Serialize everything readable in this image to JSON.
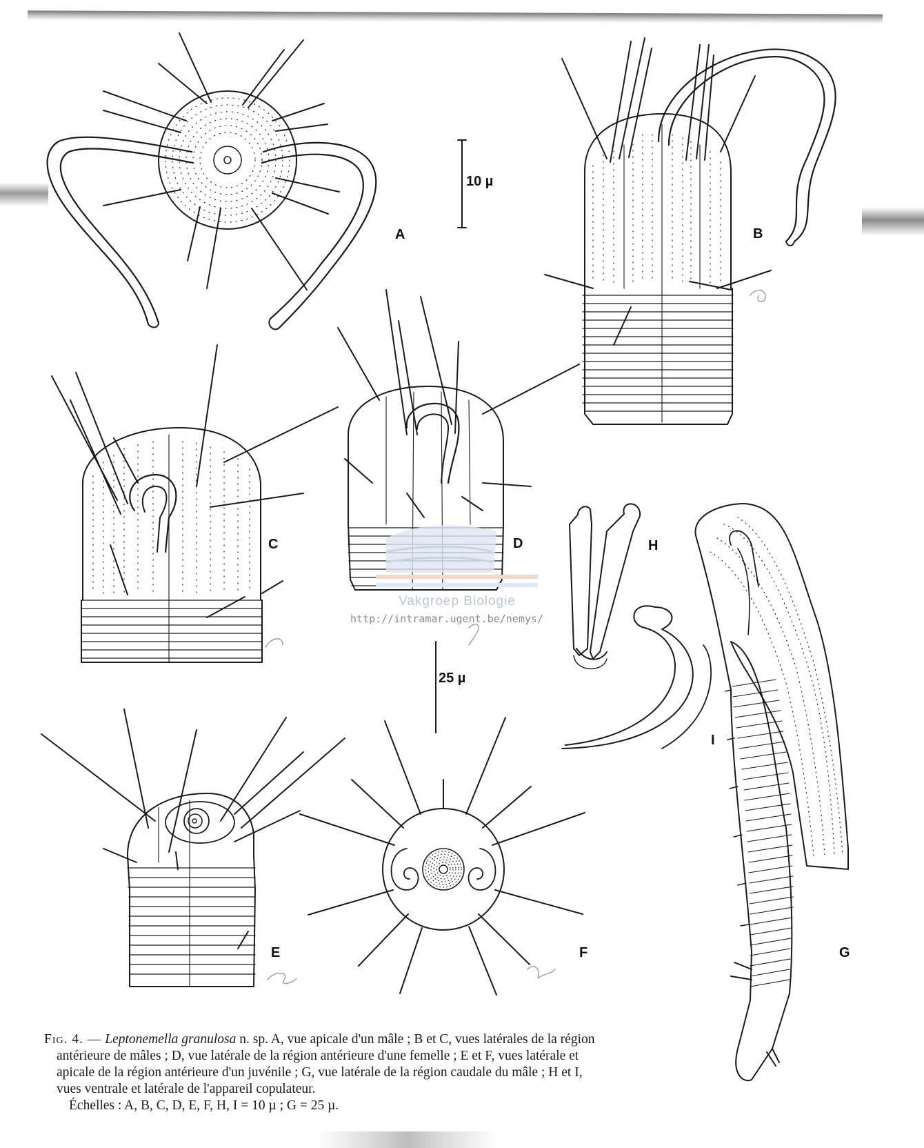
{
  "figure": {
    "panels": [
      {
        "id": "A",
        "label": "A"
      },
      {
        "id": "B",
        "label": "B"
      },
      {
        "id": "C",
        "label": "C"
      },
      {
        "id": "D",
        "label": "D"
      },
      {
        "id": "E",
        "label": "E"
      },
      {
        "id": "F",
        "label": "F"
      },
      {
        "id": "G",
        "label": "G"
      },
      {
        "id": "H",
        "label": "H"
      },
      {
        "id": "I",
        "label": "I"
      }
    ],
    "scale_bars": {
      "small": "10 µ",
      "large": "25 µ"
    }
  },
  "watermark": {
    "organization": "Vakgroep Biologie",
    "url": "http://intramar.ugent.be/nemys/"
  },
  "caption": {
    "fig_number": "Fig. 4. —",
    "species": "Leptonemella granulosa",
    "line1_rest": "n. sp. A, vue apicale d'un mâle ; B et C, vues latérales de la région",
    "line2": "antérieure de mâles ; D, vue latérale de la région antérieure d'une femelle ; E et F, vues latérale et",
    "line3": "apicale de la région antérieure d'un juvénile ; G, vue latérale de la région caudale du mâle ; H et I,",
    "line4": "vues ventrale et latérale de l'appareil copulateur.",
    "line5": "Échelles : A, B, C, D, E, F, H, I = 10 µ ; G = 25 µ."
  }
}
